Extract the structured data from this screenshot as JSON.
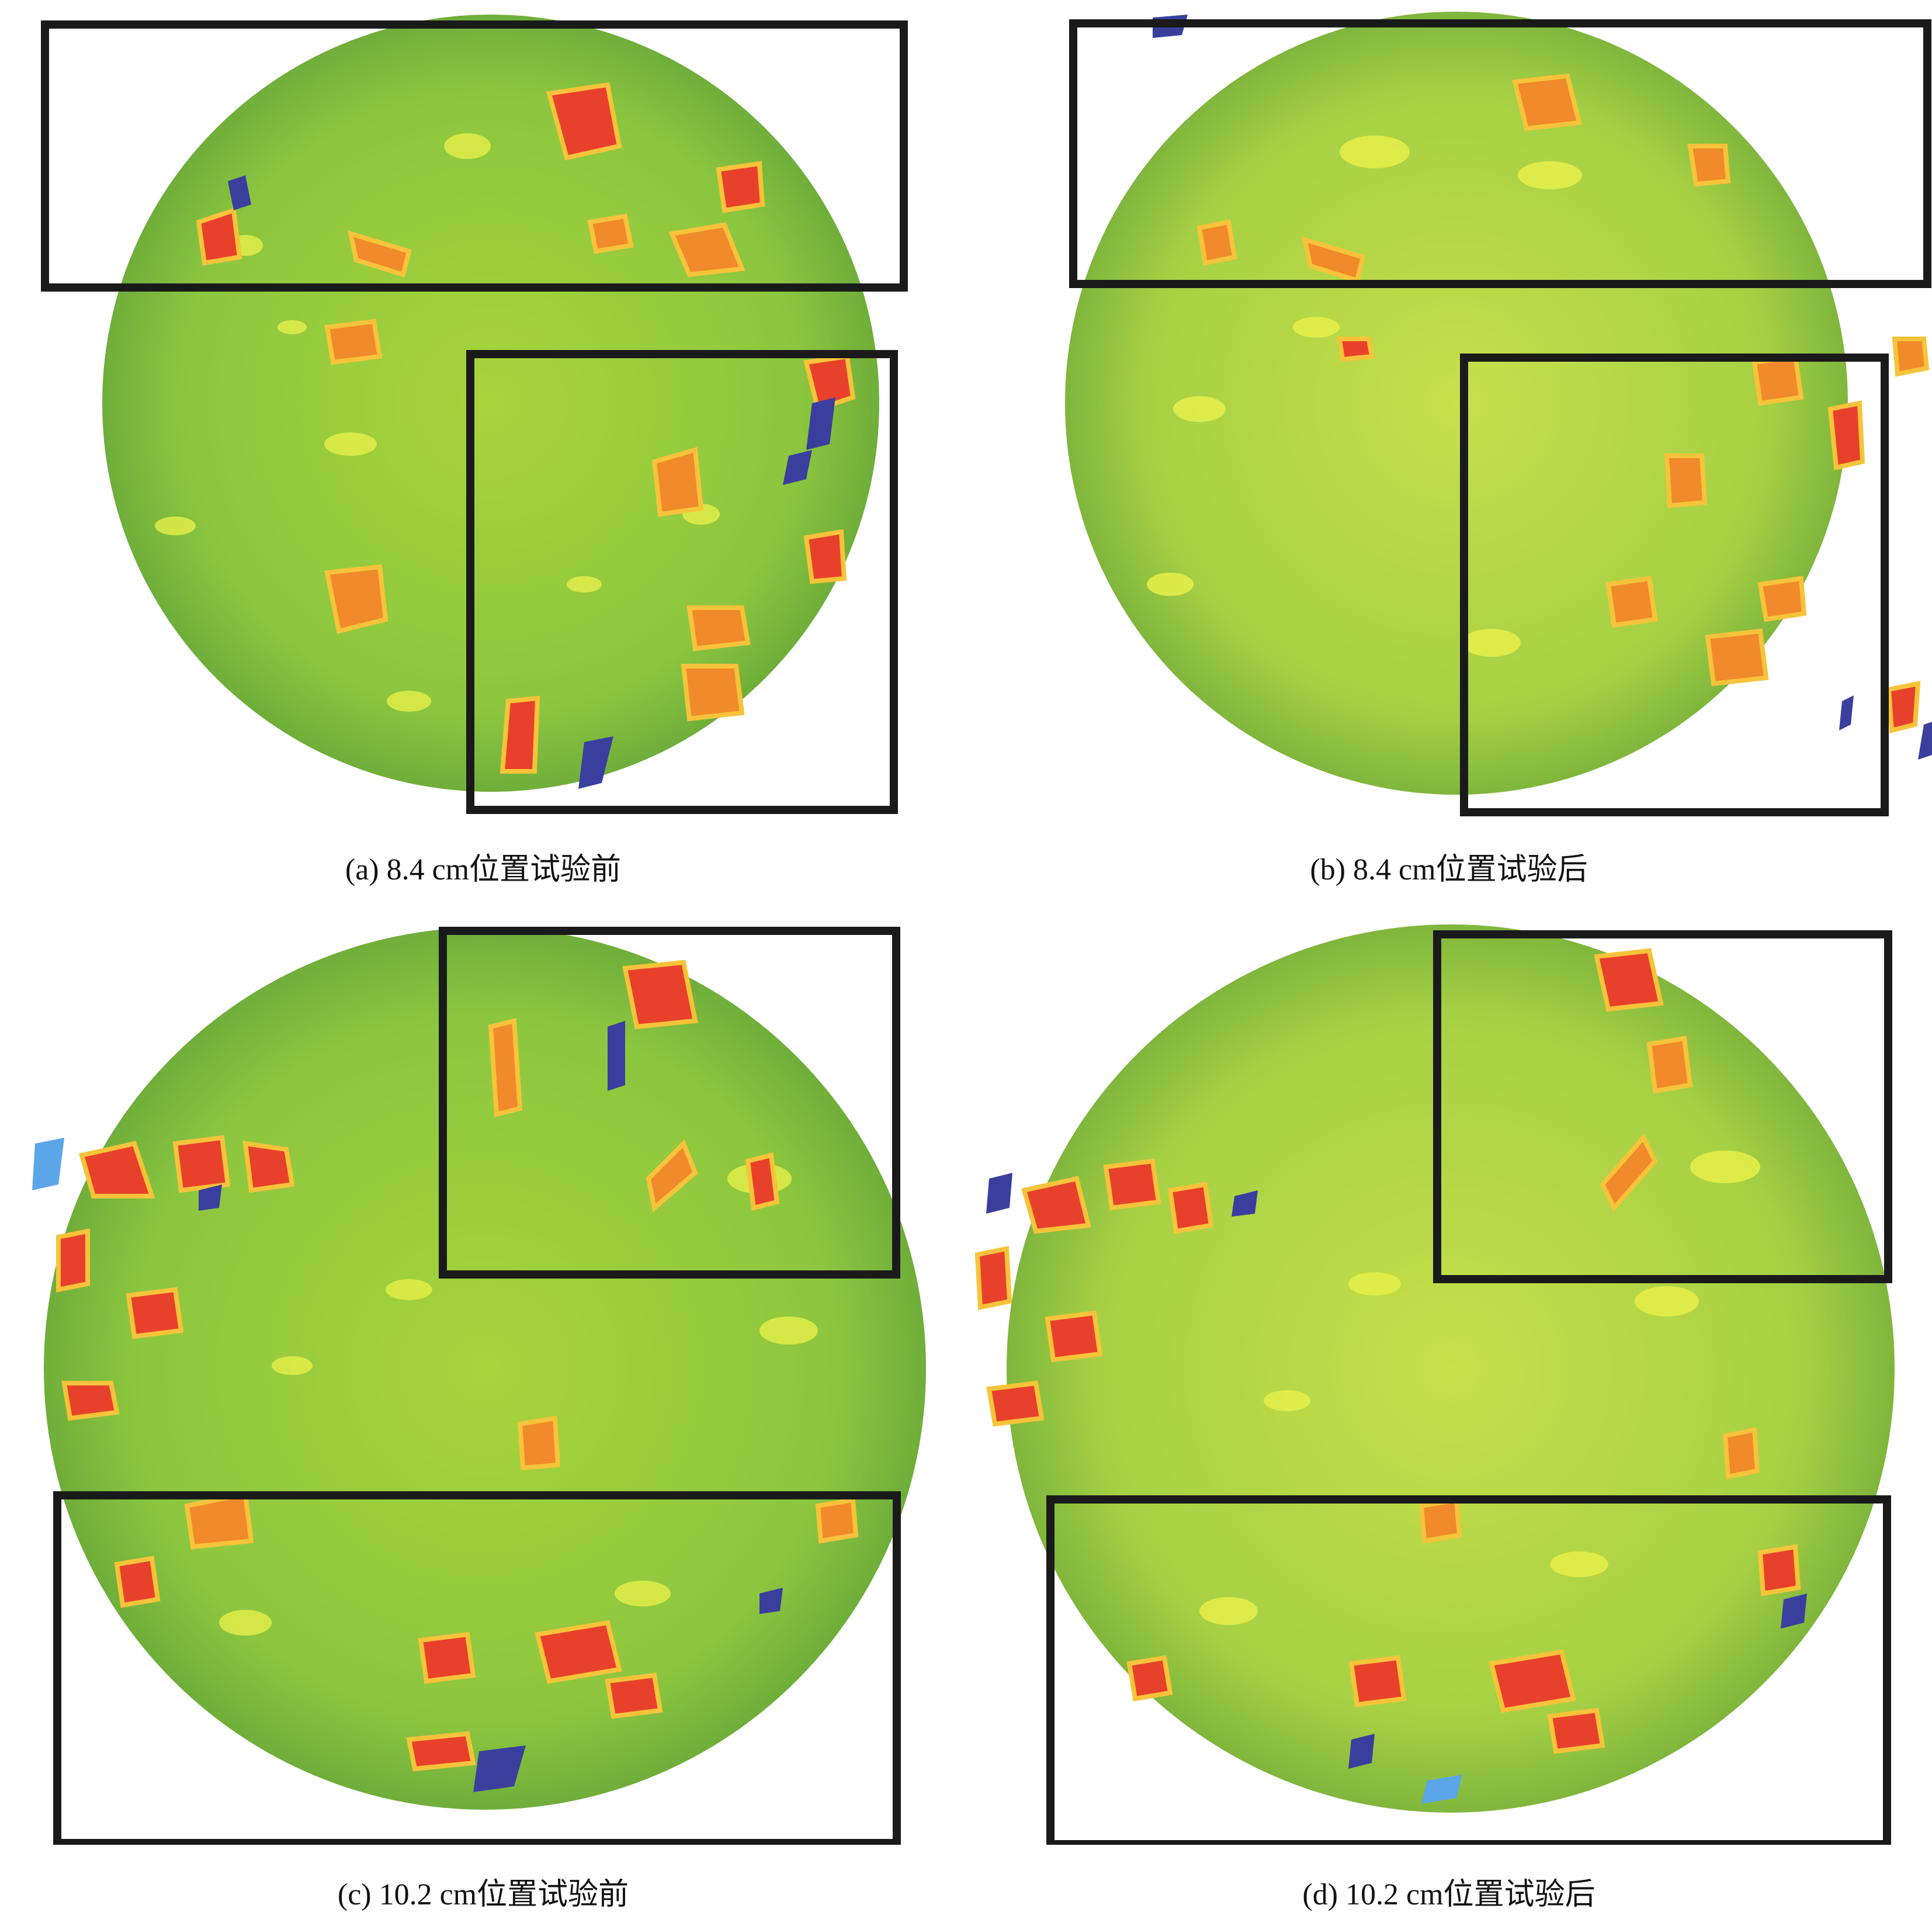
{
  "figure": {
    "panels": [
      {
        "id": "a",
        "caption": "(a) 8.4 cm位置试验前",
        "stage": "before"
      },
      {
        "id": "b",
        "caption": "(b) 8.4 cm位置试验后",
        "stage": "after"
      },
      {
        "id": "c",
        "caption": "(c) 10.2 cm位置试验前",
        "stage": "before"
      },
      {
        "id": "d",
        "caption": "(d) 10.2 cm位置试验后",
        "stage": "after"
      }
    ],
    "colors": {
      "matrix_green": "#8cc63f",
      "matrix_yellow": "#e6ef4a",
      "aggregate_orange": "#f08a2a",
      "aggregate_red": "#e8412b",
      "void_blue": "#3a3f9e",
      "void_light": "#5aa6e8",
      "frame_black": "#1a1a1a"
    }
  }
}
